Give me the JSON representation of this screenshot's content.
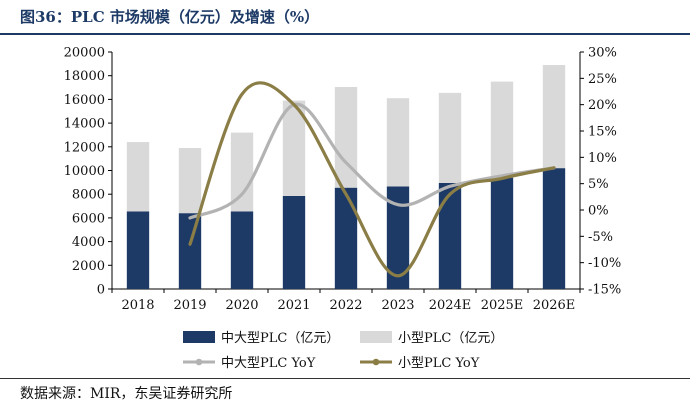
{
  "header": {
    "title": "图36：PLC 市场规模（亿元）及增速（%）"
  },
  "footer": {
    "source": "数据来源：MIR，东吴证券研究所"
  },
  "chart_data": {
    "type": "bar",
    "title": "图36：PLC 市场规模（亿元）及增速（%）",
    "categories": [
      "2018",
      "2019",
      "2020",
      "2021",
      "2022",
      "2023",
      "2024E",
      "2025E",
      "2026E"
    ],
    "y_left": {
      "min": 0,
      "max": 20000,
      "step": 2000,
      "ticks": [
        "0",
        "2000",
        "4000",
        "6000",
        "8000",
        "10000",
        "12000",
        "14000",
        "16000",
        "18000",
        "20000"
      ]
    },
    "y_right": {
      "min": -15,
      "max": 30,
      "step": 5,
      "ticks": [
        "-15%",
        "-10%",
        "-5%",
        "0%",
        "5%",
        "10%",
        "15%",
        "20%",
        "25%",
        "30%"
      ]
    },
    "series": [
      {
        "name": "中大型PLC（亿元）",
        "kind": "stacked-bar",
        "axis": "left",
        "color": "#1d3a66",
        "values": [
          6550,
          6400,
          6550,
          7850,
          8550,
          8650,
          8950,
          9400,
          10200
        ]
      },
      {
        "name": "小型PLC（亿元）",
        "kind": "stacked-bar",
        "axis": "left",
        "color": "#d9d9d9",
        "values": [
          5850,
          5500,
          6650,
          8050,
          8500,
          7450,
          7600,
          8100,
          8700
        ]
      },
      {
        "name": "中大型PLC YoY",
        "kind": "line",
        "axis": "right",
        "color": "#b3b3b3",
        "values": [
          null,
          -1.5,
          3.0,
          20.0,
          9.0,
          1.0,
          4.5,
          6.5,
          8.0
        ]
      },
      {
        "name": "小型PLC YoY",
        "kind": "line",
        "axis": "right",
        "color": "#8b7d46",
        "values": [
          null,
          -6.5,
          22.0,
          20.0,
          3.0,
          -12.5,
          3.0,
          6.0,
          8.0
        ]
      }
    ],
    "legend": {
      "position": "bottom"
    },
    "grid": false
  }
}
